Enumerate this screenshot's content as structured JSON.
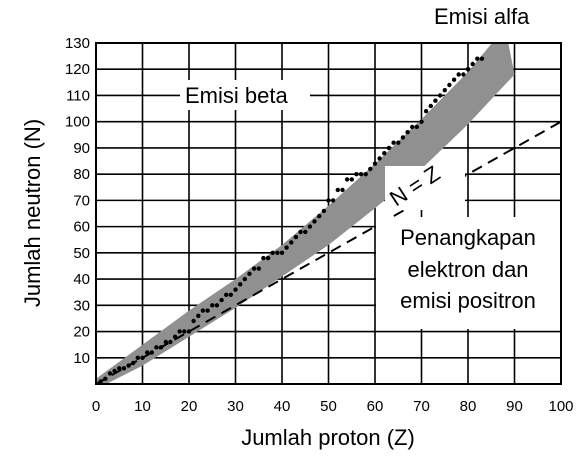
{
  "chart_data": {
    "type": "scatter",
    "title": "",
    "xlabel": "Jumlah proton (Z)",
    "ylabel": "Jumlah neutron (N)",
    "xlim": [
      0,
      100
    ],
    "ylim": [
      0,
      130
    ],
    "x_ticks": [
      0,
      10,
      20,
      30,
      40,
      50,
      60,
      70,
      80,
      90,
      100
    ],
    "y_ticks": [
      10,
      20,
      30,
      40,
      50,
      60,
      70,
      80,
      90,
      100,
      110,
      120,
      130
    ],
    "grid": true,
    "annotations": {
      "alpha": "Emisi alfa",
      "beta": "Emisi beta",
      "n_equals_z": "N = Z",
      "capture_line1": "Penangkapan",
      "capture_line2": "elektron dan",
      "capture_line3": "emisi positron"
    },
    "band_of_stability": {
      "color": "#909090",
      "upper": [
        [
          0,
          2
        ],
        [
          10,
          15
        ],
        [
          20,
          28
        ],
        [
          30,
          40
        ],
        [
          40,
          53
        ],
        [
          50,
          68
        ],
        [
          60,
          84
        ],
        [
          70,
          101
        ],
        [
          80,
          119
        ],
        [
          88,
          136
        ]
      ],
      "lower": [
        [
          0,
          -2
        ],
        [
          10,
          7
        ],
        [
          20,
          18
        ],
        [
          30,
          29
        ],
        [
          40,
          41
        ],
        [
          50,
          53
        ],
        [
          60,
          67
        ],
        [
          70,
          82
        ],
        [
          80,
          99
        ],
        [
          90,
          118
        ]
      ]
    },
    "series": [
      {
        "type": "line",
        "style": "dashed",
        "x": [
          0,
          100
        ],
        "y": [
          0,
          100
        ]
      },
      {
        "type": "scatter",
        "x": [
          1,
          2,
          3,
          4,
          5,
          6,
          7,
          8,
          9,
          10,
          11,
          12,
          13,
          14,
          15,
          16,
          17,
          18,
          19,
          20,
          21,
          22,
          23,
          24,
          25,
          26,
          27,
          28,
          29,
          30,
          31,
          32,
          33,
          34,
          35,
          36,
          37,
          38,
          39,
          40,
          41,
          42,
          43,
          44,
          45,
          46,
          47,
          48,
          49,
          50,
          51,
          52,
          53,
          54,
          55,
          56,
          57,
          58,
          59,
          60,
          61,
          62,
          63,
          64,
          65,
          66,
          67,
          68,
          69,
          70,
          71,
          72,
          73,
          74,
          75,
          76,
          77,
          78,
          79,
          80,
          81,
          82,
          83
        ],
        "y": [
          1,
          2,
          4,
          5,
          6,
          6,
          7,
          8,
          10,
          10,
          12,
          12,
          14,
          14,
          16,
          16,
          18,
          20,
          20,
          20,
          24,
          26,
          28,
          28,
          30,
          30,
          32,
          34,
          34,
          36,
          38,
          40,
          42,
          44,
          44,
          48,
          48,
          50,
          50,
          50,
          52,
          54,
          56,
          58,
          58,
          60,
          62,
          64,
          66,
          70,
          70,
          74,
          74,
          78,
          78,
          80,
          80,
          80,
          82,
          84,
          86,
          88,
          90,
          92,
          92,
          94,
          96,
          98,
          98,
          100,
          104,
          106,
          108,
          110,
          112,
          114,
          116,
          118,
          118,
          120,
          122,
          124,
          124
        ]
      }
    ]
  }
}
